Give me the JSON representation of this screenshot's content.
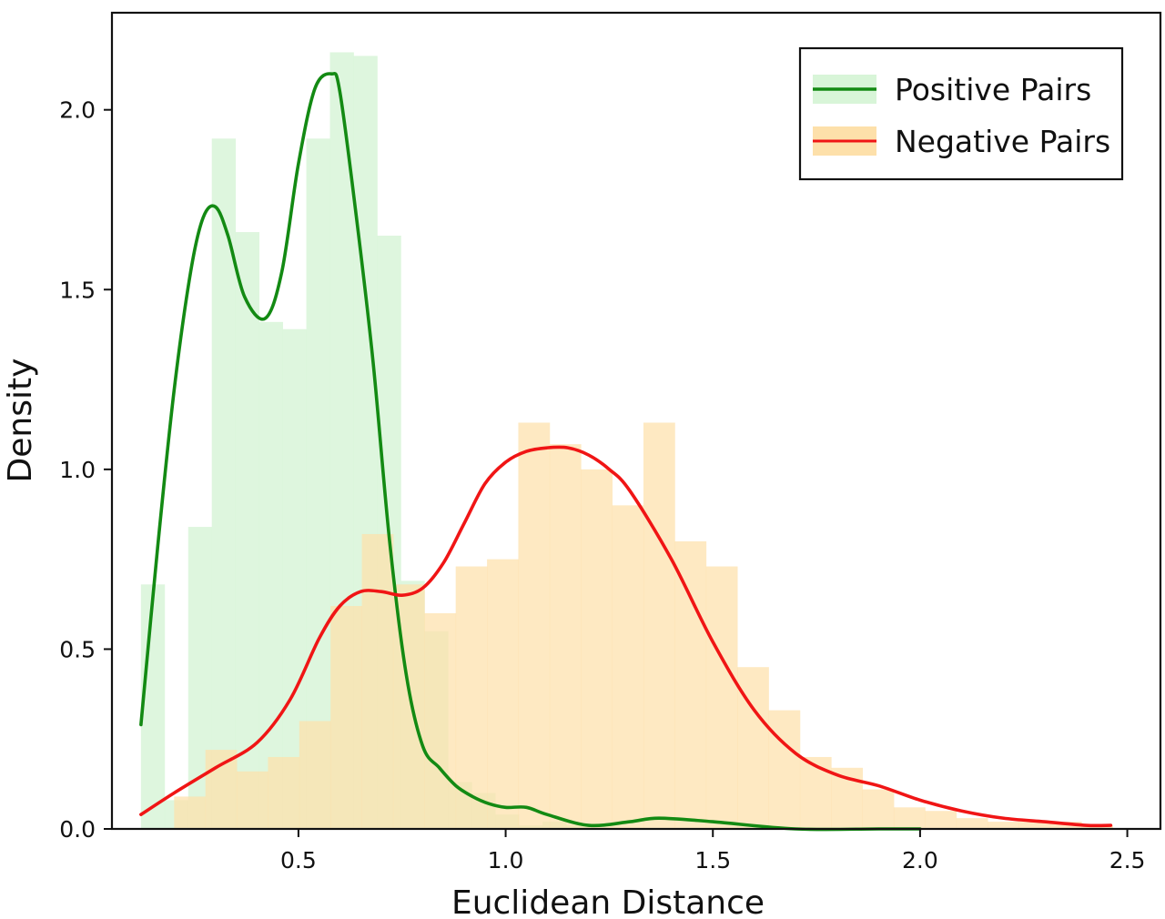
{
  "chart_data": {
    "type": "area",
    "title": "",
    "xlabel": "Euclidean Distance",
    "ylabel": "Density",
    "xlim": [
      0.05,
      2.58
    ],
    "ylim": [
      0,
      2.27
    ],
    "x_ticks": [
      0.5,
      1.0,
      1.5,
      2.0,
      2.5
    ],
    "y_ticks": [
      0.0,
      0.5,
      1.0,
      1.5,
      2.0
    ],
    "grid": false,
    "legend_position": "top-right",
    "series": [
      {
        "name": "Positive Pairs",
        "line_color": "#138a13",
        "fill_color": "#d8f5d8",
        "histogram": {
          "start": 0.12,
          "bin_width": 0.057,
          "densities": [
            0.68,
            0.08,
            0.84,
            1.92,
            1.66,
            1.41,
            1.39,
            1.92,
            2.16,
            2.15,
            1.65,
            0.69,
            0.55,
            0.13,
            0.1,
            0.04,
            0.01,
            0.02,
            0.01
          ]
        },
        "kde": {
          "x": [
            0.12,
            0.16,
            0.2,
            0.24,
            0.27,
            0.3,
            0.33,
            0.37,
            0.42,
            0.46,
            0.5,
            0.54,
            0.58,
            0.6,
            0.64,
            0.68,
            0.72,
            0.76,
            0.8,
            0.84,
            0.88,
            0.92,
            0.96,
            1.0,
            1.05,
            1.1,
            1.2,
            1.3,
            1.37,
            1.5,
            1.7,
            1.9,
            2.0
          ],
          "y": [
            0.29,
            0.78,
            1.22,
            1.55,
            1.7,
            1.73,
            1.65,
            1.48,
            1.42,
            1.55,
            1.85,
            2.06,
            2.1,
            2.05,
            1.7,
            1.3,
            0.8,
            0.43,
            0.23,
            0.17,
            0.12,
            0.09,
            0.07,
            0.06,
            0.06,
            0.04,
            0.01,
            0.02,
            0.03,
            0.02,
            0.0,
            0.0,
            0.0
          ]
        }
      },
      {
        "name": "Negative Pairs",
        "line_color": "#f01515",
        "fill_color": "#fde0aa",
        "histogram": {
          "start": 0.2,
          "bin_width": 0.0755,
          "densities": [
            0.09,
            0.22,
            0.16,
            0.2,
            0.3,
            0.62,
            0.82,
            0.68,
            0.6,
            0.73,
            0.75,
            1.13,
            1.07,
            1.0,
            0.9,
            1.13,
            0.8,
            0.73,
            0.45,
            0.33,
            0.2,
            0.17,
            0.11,
            0.06,
            0.05,
            0.03,
            0.02,
            0.02,
            0.02,
            0.01
          ]
        },
        "kde": {
          "x": [
            0.12,
            0.2,
            0.3,
            0.4,
            0.48,
            0.55,
            0.6,
            0.65,
            0.7,
            0.75,
            0.8,
            0.85,
            0.9,
            0.95,
            1.0,
            1.05,
            1.1,
            1.15,
            1.2,
            1.25,
            1.3,
            1.4,
            1.5,
            1.6,
            1.7,
            1.8,
            1.9,
            2.0,
            2.1,
            2.2,
            2.3,
            2.4,
            2.46
          ],
          "y": [
            0.04,
            0.1,
            0.17,
            0.24,
            0.36,
            0.53,
            0.62,
            0.66,
            0.66,
            0.65,
            0.67,
            0.74,
            0.85,
            0.96,
            1.02,
            1.05,
            1.06,
            1.06,
            1.04,
            1.0,
            0.94,
            0.75,
            0.52,
            0.33,
            0.21,
            0.15,
            0.12,
            0.08,
            0.05,
            0.03,
            0.02,
            0.01,
            0.01
          ]
        }
      }
    ]
  }
}
